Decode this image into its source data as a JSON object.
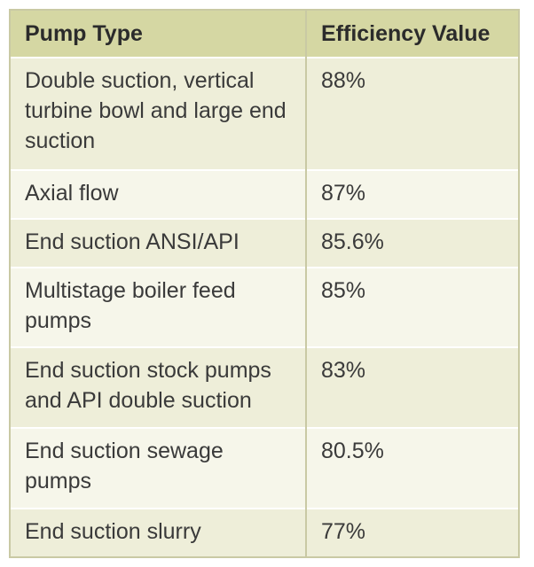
{
  "table": {
    "headers": {
      "pump_type": "Pump Type",
      "efficiency": "Efficiency Value"
    },
    "rows": [
      {
        "pump_type": "Double suction, vertical turbine bowl and large end suction",
        "efficiency": "88%"
      },
      {
        "pump_type": "Axial flow",
        "efficiency": "87%"
      },
      {
        "pump_type": "End suction ANSI/API",
        "efficiency": "85.6%"
      },
      {
        "pump_type": "Multistage boiler feed pumps",
        "efficiency": "85%"
      },
      {
        "pump_type": "End suction stock pumps and API double suction",
        "efficiency": "83%"
      },
      {
        "pump_type": "End suction sewage pumps",
        "efficiency": "80.5%"
      },
      {
        "pump_type": "End suction slurry",
        "efficiency": "77%"
      }
    ]
  }
}
